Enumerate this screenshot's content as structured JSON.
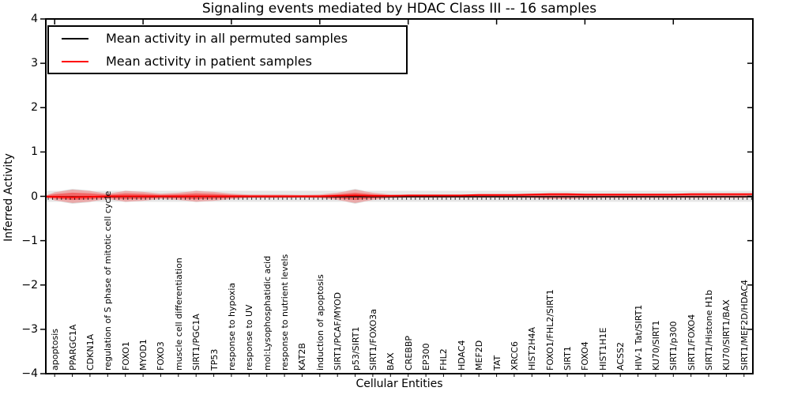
{
  "chart_data": {
    "type": "violin",
    "title": "Signaling events mediated by HDAC Class III -- 16 samples",
    "xlabel": "Cellular Entities",
    "ylabel": "Inferred Activity",
    "ylim": [
      -4,
      4
    ],
    "yticks": [
      4,
      3,
      2,
      1,
      0,
      -1,
      -2,
      -3,
      -4
    ],
    "grid": false,
    "legend_position": "upper left",
    "categories": [
      "apoptosis",
      "PPARGC1A",
      "CDKN1A",
      "regulation of S phase of mitotic cell cycle",
      "FOXO1",
      "MYOD1",
      "FOXO3",
      "muscle cell differentiation",
      "SIRT1/PGC1A",
      "TP53",
      "response to hypoxia",
      "response to UV",
      "mol:Lysophosphatidic acid",
      "response to nutrient levels",
      "KAT2B",
      "induction of apoptosis",
      "SIRT1/PCAF/MYOD",
      "p53/SIRT1",
      "SIRT1/FOXO3a",
      "BAX",
      "CREBBP",
      "EP300",
      "FHL2",
      "HDAC4",
      "MEF2D",
      "TAT",
      "XRCC6",
      "HIST2H4A",
      "FOXO1/FHL2/SIRT1",
      "SIRT1",
      "FOXO4",
      "HIST1H1E",
      "ACSS2",
      "HIV-1 Tat/SIRT1",
      "KU70/SIRT1",
      "SIRT1/p300",
      "SIRT1/FOXO4",
      "SIRT1/Histone H1b",
      "KU70/SIRT1/BAX",
      "SIRT1/MEF2D/HDAC4"
    ],
    "series": [
      {
        "name": "Mean activity in all permuted samples",
        "color": "#000000",
        "values": [
          0,
          0,
          0,
          0,
          0,
          0,
          0,
          0,
          0,
          0,
          0,
          0,
          0,
          0,
          0,
          0,
          0,
          0,
          0,
          0,
          0,
          0,
          0,
          0,
          0,
          0,
          0,
          0,
          0,
          0,
          0,
          0,
          0,
          0,
          0,
          0,
          0,
          0,
          0,
          0
        ]
      },
      {
        "name": "Mean activity in patient samples",
        "color": "#ff0000",
        "values": [
          -0.01,
          -0.02,
          -0.01,
          0,
          0,
          0,
          0,
          0,
          0,
          0,
          0,
          0,
          0,
          0,
          0,
          0,
          0.01,
          0.02,
          0.01,
          0.01,
          0.02,
          0.02,
          0.02,
          0.02,
          0.03,
          0.03,
          0.03,
          0.04,
          0.05,
          0.05,
          0.04,
          0.04,
          0.04,
          0.04,
          0.04,
          0.04,
          0.05,
          0.05,
          0.05,
          0.05
        ]
      }
    ],
    "violin_halfwidth": [
      0.09,
      0.15,
      0.12,
      0.06,
      0.12,
      0.1,
      0.06,
      0.08,
      0.12,
      0.1,
      0.06,
      0.04,
      0.04,
      0.04,
      0.03,
      0.04,
      0.08,
      0.15,
      0.08,
      0.04,
      0.03,
      0.03,
      0.03,
      0.03,
      0.03,
      0.03,
      0.03,
      0.04,
      0.06,
      0.06,
      0.05,
      0.04,
      0.04,
      0.04,
      0.04,
      0.04,
      0.04,
      0.04,
      0.04,
      0.04
    ],
    "violin_color": "#ff0000",
    "violin_opacity_outer": 0.25,
    "violin_opacity_inner": 0.4,
    "permuted_band_halfwidth": 0.125,
    "band_color": "#e4e4e4",
    "gray_violin_color": "#d8d8d8"
  }
}
